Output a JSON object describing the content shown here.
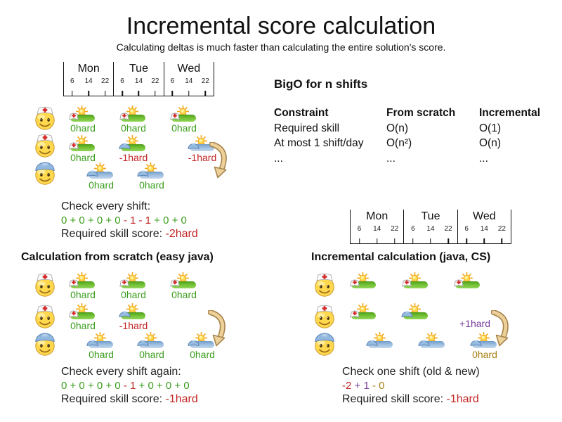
{
  "slide": {
    "title": "Incremental score calculation",
    "subtitle": "Calculating deltas is much faster than calculating the entire solution's score."
  },
  "palette": {
    "green": "#3c9e1e",
    "red": "#c32424",
    "purple": "#7a3d9e",
    "gold": "#a87f12",
    "ink": "#1a1a1a"
  },
  "timeline": {
    "days": [
      "Mon",
      "Tue",
      "Wed"
    ],
    "hours": [
      "6",
      "14",
      "22"
    ]
  },
  "bigo": {
    "heading": "BigO for n shifts",
    "columns": [
      "Constraint",
      "From scratch",
      "Incremental"
    ],
    "rows": [
      [
        "Required skill",
        "O(n)",
        "O(1)"
      ],
      [
        "At most 1 shift/day",
        "O(n²)",
        "O(n)"
      ],
      [
        "...",
        "...",
        "..."
      ]
    ]
  },
  "sections": {
    "initial": {
      "caption_line1": "Check every shift:",
      "sum": [
        {
          "text": "0 + 0 + 0 + 0",
          "color": "green"
        },
        {
          "text": " - 1 - 1",
          "color": "red"
        },
        {
          "text": " + 0 + 0",
          "color": "green"
        }
      ],
      "score_prefix": "Required skill score: ",
      "score": "-2hard",
      "score_color": "red"
    },
    "scratch": {
      "heading": "Calculation from scratch (easy java)",
      "caption_line1": "Check every shift again:",
      "sum": [
        {
          "text": "0 + 0 + 0 + 0",
          "color": "green"
        },
        {
          "text": " - 1",
          "color": "red"
        },
        {
          "text": " + 0 + 0 + 0",
          "color": "green"
        }
      ],
      "score_prefix": "Required skill score: ",
      "score": "-1hard",
      "score_color": "red"
    },
    "incremental": {
      "heading": "Incremental calculation (java, CS)",
      "caption_line1": "Check one shift (old & new)",
      "sum": [
        {
          "text": "-2",
          "color": "red"
        },
        {
          "text": " + 1",
          "color": "purple"
        },
        {
          "text": " - 0",
          "color": "gold"
        }
      ],
      "score_prefix": "Required skill score: ",
      "score": "-1hard",
      "score_color": "red"
    }
  },
  "diagrams": {
    "initial": {
      "rows": [
        {
          "employee": "nurse",
          "shifts": [
            {
              "day": 0,
              "night": false,
              "bar": "green",
              "hat": "nurse",
              "score": "0hard",
              "color": "green"
            },
            {
              "day": 1,
              "night": false,
              "bar": "green",
              "hat": "nurse",
              "score": "0hard",
              "color": "green"
            },
            {
              "day": 2,
              "night": false,
              "bar": "green",
              "hat": "nurse",
              "score": "0hard",
              "color": "green"
            }
          ]
        },
        {
          "employee": "nurse",
          "shifts": [
            {
              "day": 0,
              "night": false,
              "bar": "green",
              "hat": "nurse",
              "score": "0hard",
              "color": "green"
            },
            {
              "day": 1,
              "night": false,
              "bar": "green",
              "hat": "builder",
              "score": "-1hard",
              "color": "red"
            },
            {
              "day": 2,
              "night": true,
              "bar": "blue",
              "hat": "builder",
              "score": "-1hard",
              "color": "red"
            }
          ]
        },
        {
          "employee": "builder",
          "shifts": [
            {
              "day": 0,
              "night": true,
              "bar": "blue",
              "hat": "builder",
              "score": "0hard",
              "color": "green"
            },
            {
              "day": 1,
              "night": true,
              "bar": "blue",
              "hat": "builder",
              "score": "0hard",
              "color": "green"
            }
          ]
        }
      ],
      "arrow": {
        "present": true,
        "label": "",
        "label_color": ""
      }
    },
    "scratch": {
      "rows": [
        {
          "employee": "nurse",
          "shifts": [
            {
              "day": 0,
              "night": false,
              "bar": "green",
              "hat": "nurse",
              "score": "0hard",
              "color": "green"
            },
            {
              "day": 1,
              "night": false,
              "bar": "green",
              "hat": "nurse",
              "score": "0hard",
              "color": "green"
            },
            {
              "day": 2,
              "night": false,
              "bar": "green",
              "hat": "nurse",
              "score": "0hard",
              "color": "green"
            }
          ]
        },
        {
          "employee": "nurse",
          "shifts": [
            {
              "day": 0,
              "night": false,
              "bar": "green",
              "hat": "nurse",
              "score": "0hard",
              "color": "green"
            },
            {
              "day": 1,
              "night": false,
              "bar": "green",
              "hat": "builder",
              "score": "-1hard",
              "color": "red"
            }
          ]
        },
        {
          "employee": "builder",
          "shifts": [
            {
              "day": 0,
              "night": true,
              "bar": "blue",
              "hat": "builder",
              "score": "0hard",
              "color": "green"
            },
            {
              "day": 1,
              "night": true,
              "bar": "blue",
              "hat": "builder",
              "score": "0hard",
              "color": "green"
            },
            {
              "day": 2,
              "night": true,
              "bar": "blue",
              "hat": "builder",
              "score": "0hard",
              "color": "green"
            }
          ]
        }
      ],
      "arrow": {
        "present": true,
        "label": "",
        "label_color": ""
      }
    },
    "incremental": {
      "rows": [
        {
          "employee": "nurse",
          "shifts": [
            {
              "day": 0,
              "night": false,
              "bar": "green",
              "hat": "nurse",
              "score": "",
              "color": ""
            },
            {
              "day": 1,
              "night": false,
              "bar": "green",
              "hat": "nurse",
              "score": "",
              "color": ""
            },
            {
              "day": 2,
              "night": false,
              "bar": "green",
              "hat": "nurse",
              "score": "",
              "color": ""
            }
          ]
        },
        {
          "employee": "nurse",
          "shifts": [
            {
              "day": 0,
              "night": false,
              "bar": "green",
              "hat": "nurse",
              "score": "",
              "color": ""
            },
            {
              "day": 1,
              "night": false,
              "bar": "green",
              "hat": "builder",
              "score": "",
              "color": ""
            }
          ]
        },
        {
          "employee": "builder",
          "shifts": [
            {
              "day": 0,
              "night": true,
              "bar": "blue",
              "hat": "builder",
              "score": "",
              "color": ""
            },
            {
              "day": 1,
              "night": true,
              "bar": "blue",
              "hat": "builder",
              "score": "",
              "color": ""
            },
            {
              "day": 2,
              "night": true,
              "bar": "blue",
              "hat": "builder",
              "score": "0hard",
              "color": "gold"
            }
          ]
        }
      ],
      "arrow": {
        "present": true,
        "label": "+1hard",
        "label_color": "purple"
      }
    }
  }
}
